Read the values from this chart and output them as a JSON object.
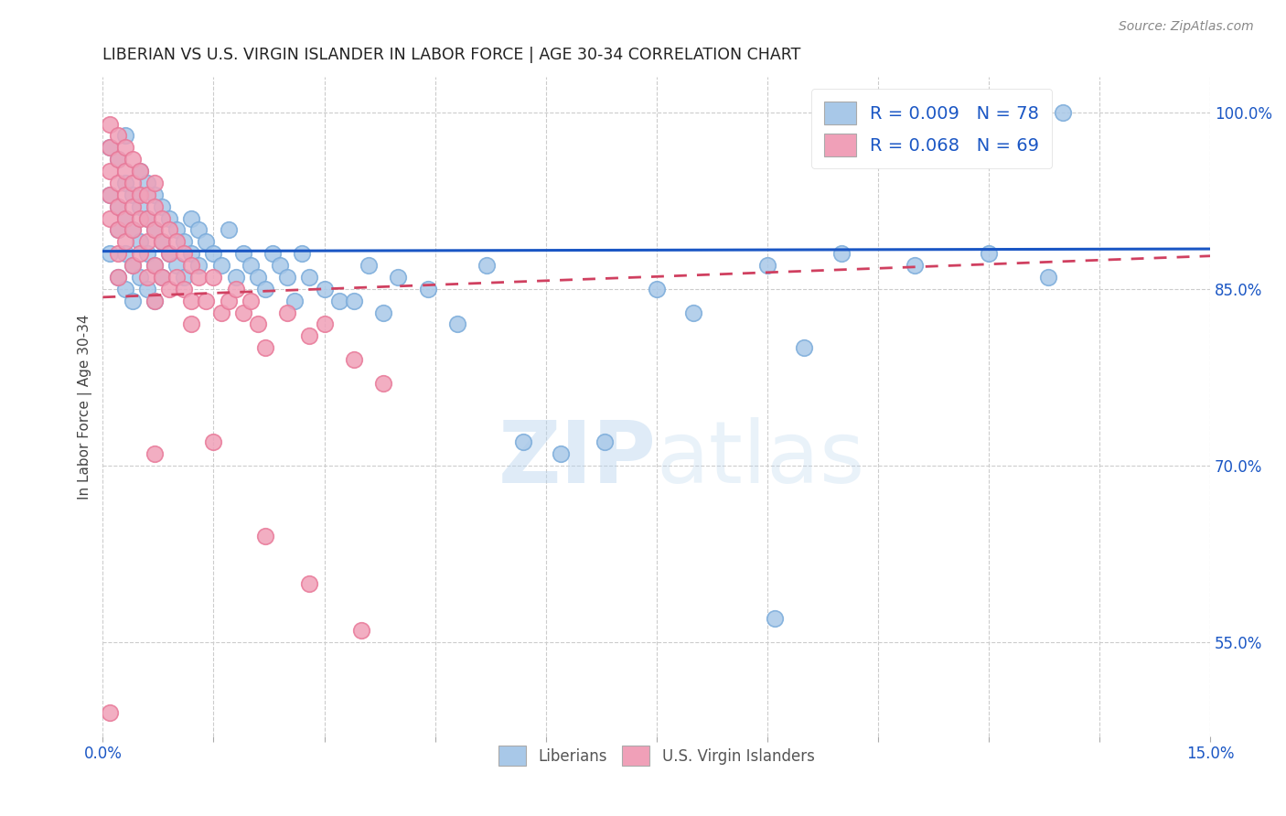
{
  "title": "LIBERIAN VS U.S. VIRGIN ISLANDER IN LABOR FORCE | AGE 30-34 CORRELATION CHART",
  "source": "Source: ZipAtlas.com",
  "ylabel": "In Labor Force | Age 30-34",
  "xlim": [
    0.0,
    0.15
  ],
  "ylim": [
    0.47,
    1.03
  ],
  "xticks": [
    0.0,
    0.015,
    0.03,
    0.045,
    0.06,
    0.075,
    0.09,
    0.105,
    0.12,
    0.135,
    0.15
  ],
  "yticks_right": [
    0.55,
    0.7,
    0.85,
    1.0
  ],
  "ytick_right_labels": [
    "55.0%",
    "70.0%",
    "85.0%",
    "100.0%"
  ],
  "blue_color": "#a8c8e8",
  "pink_color": "#f0a0b8",
  "blue_edge_color": "#7aabda",
  "pink_edge_color": "#e87898",
  "blue_line_color": "#1a56c4",
  "pink_line_color": "#d04060",
  "legend_r_blue": "R = 0.009",
  "legend_n_blue": "N = 78",
  "legend_r_pink": "R = 0.068",
  "legend_n_pink": "N = 69",
  "blue_scatter_x": [
    0.001,
    0.001,
    0.001,
    0.002,
    0.002,
    0.002,
    0.002,
    0.003,
    0.003,
    0.003,
    0.003,
    0.003,
    0.004,
    0.004,
    0.004,
    0.004,
    0.005,
    0.005,
    0.005,
    0.005,
    0.006,
    0.006,
    0.006,
    0.006,
    0.007,
    0.007,
    0.007,
    0.007,
    0.008,
    0.008,
    0.008,
    0.009,
    0.009,
    0.01,
    0.01,
    0.011,
    0.011,
    0.012,
    0.012,
    0.013,
    0.013,
    0.014,
    0.015,
    0.016,
    0.017,
    0.018,
    0.019,
    0.02,
    0.021,
    0.022,
    0.023,
    0.024,
    0.025,
    0.026,
    0.027,
    0.028,
    0.03,
    0.032,
    0.034,
    0.036,
    0.038,
    0.04,
    0.044,
    0.048,
    0.052,
    0.057,
    0.062,
    0.068,
    0.075,
    0.08,
    0.09,
    0.095,
    0.1,
    0.11,
    0.12,
    0.128,
    0.091,
    0.13
  ],
  "blue_scatter_y": [
    0.97,
    0.93,
    0.88,
    0.96,
    0.92,
    0.9,
    0.86,
    0.94,
    0.91,
    0.88,
    0.85,
    0.98,
    0.93,
    0.9,
    0.87,
    0.84,
    0.95,
    0.92,
    0.89,
    0.86,
    0.94,
    0.91,
    0.88,
    0.85,
    0.93,
    0.9,
    0.87,
    0.84,
    0.92,
    0.89,
    0.86,
    0.91,
    0.88,
    0.9,
    0.87,
    0.89,
    0.86,
    0.91,
    0.88,
    0.9,
    0.87,
    0.89,
    0.88,
    0.87,
    0.9,
    0.86,
    0.88,
    0.87,
    0.86,
    0.85,
    0.88,
    0.87,
    0.86,
    0.84,
    0.88,
    0.86,
    0.85,
    0.84,
    0.84,
    0.87,
    0.83,
    0.86,
    0.85,
    0.82,
    0.87,
    0.72,
    0.71,
    0.72,
    0.85,
    0.83,
    0.87,
    0.8,
    0.88,
    0.87,
    0.88,
    0.86,
    0.57,
    1.0
  ],
  "pink_scatter_x": [
    0.001,
    0.001,
    0.001,
    0.001,
    0.001,
    0.002,
    0.002,
    0.002,
    0.002,
    0.002,
    0.002,
    0.002,
    0.003,
    0.003,
    0.003,
    0.003,
    0.003,
    0.004,
    0.004,
    0.004,
    0.004,
    0.004,
    0.005,
    0.005,
    0.005,
    0.005,
    0.006,
    0.006,
    0.006,
    0.006,
    0.007,
    0.007,
    0.007,
    0.007,
    0.007,
    0.008,
    0.008,
    0.008,
    0.009,
    0.009,
    0.009,
    0.01,
    0.01,
    0.011,
    0.011,
    0.012,
    0.012,
    0.012,
    0.013,
    0.014,
    0.015,
    0.016,
    0.017,
    0.018,
    0.019,
    0.02,
    0.021,
    0.022,
    0.025,
    0.028,
    0.03,
    0.034,
    0.038,
    0.022,
    0.028,
    0.035,
    0.015,
    0.007,
    0.001
  ],
  "pink_scatter_y": [
    0.99,
    0.97,
    0.95,
    0.93,
    0.91,
    0.98,
    0.96,
    0.94,
    0.92,
    0.9,
    0.88,
    0.86,
    0.97,
    0.95,
    0.93,
    0.91,
    0.89,
    0.96,
    0.94,
    0.92,
    0.9,
    0.87,
    0.95,
    0.93,
    0.91,
    0.88,
    0.93,
    0.91,
    0.89,
    0.86,
    0.94,
    0.92,
    0.9,
    0.87,
    0.84,
    0.91,
    0.89,
    0.86,
    0.9,
    0.88,
    0.85,
    0.89,
    0.86,
    0.88,
    0.85,
    0.87,
    0.84,
    0.82,
    0.86,
    0.84,
    0.86,
    0.83,
    0.84,
    0.85,
    0.83,
    0.84,
    0.82,
    0.8,
    0.83,
    0.81,
    0.82,
    0.79,
    0.77,
    0.64,
    0.6,
    0.56,
    0.72,
    0.71,
    0.49
  ],
  "blue_trend_x0": 0.0,
  "blue_trend_x1": 0.15,
  "blue_trend_y0": 0.882,
  "blue_trend_y1": 0.884,
  "pink_trend_x0": 0.0,
  "pink_trend_x1": 0.15,
  "pink_trend_y0": 0.843,
  "pink_trend_y1": 0.878,
  "watermark_zip": "ZIP",
  "watermark_atlas": "atlas",
  "background_color": "#ffffff",
  "grid_color": "#cccccc"
}
